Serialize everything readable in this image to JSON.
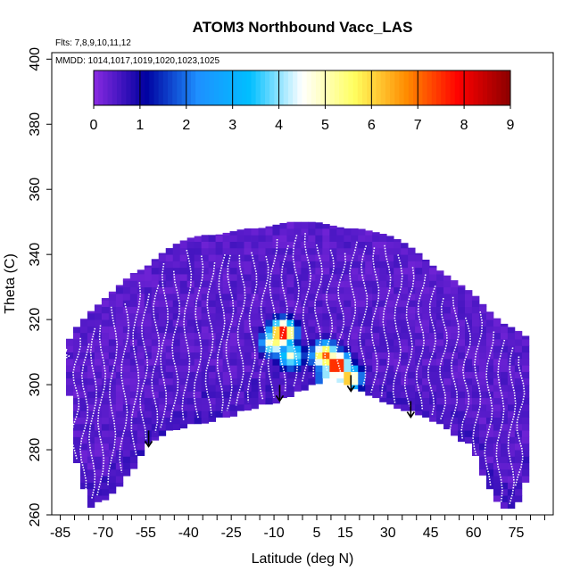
{
  "chart_data": {
    "type": "heatmap",
    "title": "ATOM3 Northbound Vacc_LAS",
    "subtitle_flights": "Flts: 7,8,9,10,11,12",
    "subtitle_dates": "MMDD: 1014,1017,1019,1020,1023,1025",
    "xlabel": "Latitude (deg N)",
    "ylabel": "Theta (C)",
    "xlim": [
      -88,
      88
    ],
    "ylim": [
      260,
      402
    ],
    "x_ticks": [
      -85,
      -70,
      -55,
      -40,
      -25,
      -10,
      5,
      15,
      30,
      45,
      60,
      75
    ],
    "y_ticks": [
      260,
      280,
      300,
      320,
      340,
      360,
      380,
      400
    ],
    "colorbar": {
      "min": 0,
      "max": 9,
      "ticks": [
        0,
        1,
        2,
        3,
        4,
        5,
        6,
        7,
        8,
        9
      ],
      "colors": [
        "#8a2be2",
        "#0000a0",
        "#1e90ff",
        "#00bfff",
        "#ffffff",
        "#ffff60",
        "#ff8c00",
        "#ff0000",
        "#8b0000"
      ]
    },
    "background_value": 0.4,
    "envelope": {
      "lat": [
        -83,
        -80,
        -75,
        -70,
        -65,
        -60,
        -55,
        -50,
        -45,
        -40,
        -35,
        -30,
        -25,
        -20,
        -15,
        -10,
        -5,
        0,
        5,
        10,
        15,
        20,
        25,
        30,
        35,
        40,
        45,
        50,
        55,
        60,
        65,
        70,
        75,
        78
      ],
      "bottom": [
        310,
        278,
        262,
        264,
        268,
        273,
        281,
        284,
        286,
        287,
        288,
        289,
        290,
        292,
        293,
        294,
        296,
        298,
        300,
        302,
        300,
        298,
        296,
        294,
        292,
        291,
        289,
        287,
        283,
        280,
        268,
        262,
        261,
        270
      ],
      "top": [
        312,
        317,
        322,
        326,
        330,
        334,
        336,
        340,
        343,
        345,
        346,
        346,
        347,
        348,
        348,
        349,
        350,
        350,
        350,
        349,
        348,
        348,
        347,
        346,
        344,
        341,
        337,
        334,
        331,
        328,
        323,
        319,
        317,
        315
      ]
    },
    "hotspots": [
      {
        "lat": -7,
        "theta": 316,
        "value": 8.2
      },
      {
        "lat": -10,
        "theta": 313,
        "value": 5.6
      },
      {
        "lat": -4,
        "theta": 309,
        "value": 4.8
      },
      {
        "lat": 12,
        "theta": 306,
        "value": 8.6
      },
      {
        "lat": 8,
        "theta": 309,
        "value": 7.2
      },
      {
        "lat": 16,
        "theta": 302,
        "value": 6.5
      },
      {
        "lat": 10,
        "theta": 302,
        "value": 5.0
      }
    ],
    "arrows": [
      {
        "lat": -54,
        "theta": 281
      },
      {
        "lat": -8,
        "theta": 295
      },
      {
        "lat": 17,
        "theta": 298
      },
      {
        "lat": 38,
        "theta": 290
      }
    ],
    "flight_track_lats": [
      -83,
      -79,
      -76,
      -73,
      -70,
      -66,
      -62,
      -58,
      -55,
      -51,
      -48,
      -44,
      -40,
      -36,
      -32,
      -28,
      -25,
      -21,
      -17,
      -13,
      -10,
      -6,
      -2,
      2,
      6,
      10,
      14,
      18,
      22,
      26,
      30,
      34,
      38,
      42,
      46,
      50,
      54,
      58,
      62,
      66,
      70,
      74,
      77
    ]
  }
}
